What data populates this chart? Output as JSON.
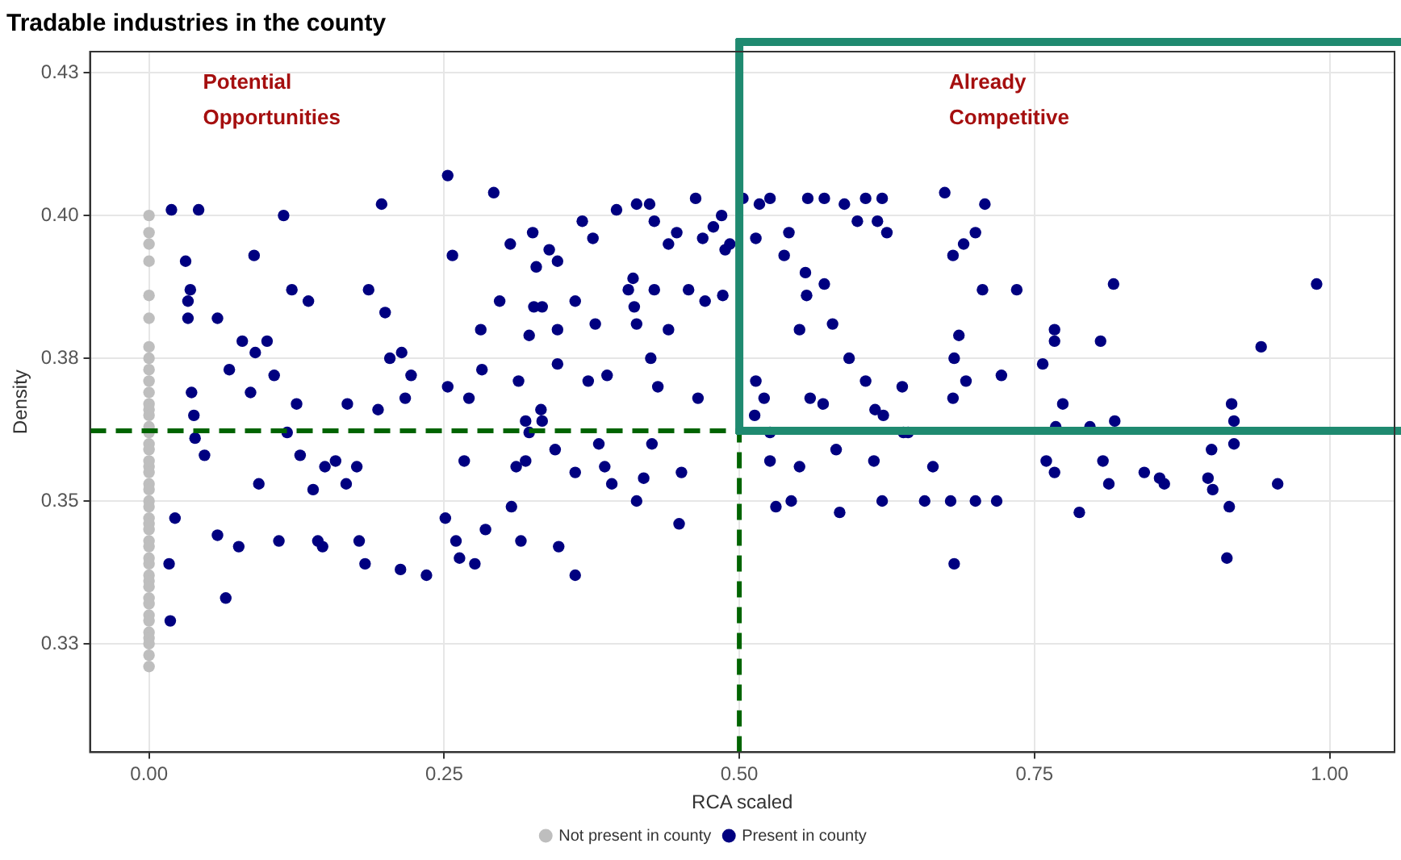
{
  "chart_data": {
    "type": "scatter",
    "title": "Tradable industries in the county",
    "xlabel": "RCA scaled",
    "ylabel": "Density",
    "xlim": [
      -0.05,
      1.055
    ],
    "ylim": [
      0.306,
      0.4287
    ],
    "xticks": [
      {
        "value": 0,
        "label": "0.00"
      },
      {
        "value": 0.25,
        "label": "0.25"
      },
      {
        "value": 0.5,
        "label": "0.50"
      },
      {
        "value": 0.75,
        "label": "0.75"
      },
      {
        "value": 1,
        "label": "1.00"
      }
    ],
    "yticks": [
      {
        "value": 0.325,
        "label": "0.33"
      },
      {
        "value": 0.35,
        "label": "0.35"
      },
      {
        "value": 0.375,
        "label": "0.38"
      },
      {
        "value": 0.4,
        "label": "0.40"
      },
      {
        "value": 0.425,
        "label": "0.43"
      }
    ],
    "grid": true,
    "legend": "bottom",
    "marker": "circle",
    "annotations": [
      "Potential Opportunities",
      "Already Competitive"
    ],
    "ref_lines": [
      {
        "axis": "y",
        "value": 0.3623,
        "color": "#006400",
        "line_style": "dashed"
      },
      {
        "axis": "x",
        "value": 0.5,
        "color": "#006400",
        "line_style": "dashed"
      },
      {
        "axis": "y",
        "value": 0.3623,
        "color": "#1f8a70",
        "line_style": "solid"
      },
      {
        "axis": "x",
        "value": 0.5,
        "color": "#1f8a70",
        "line_style": "solid"
      }
    ],
    "series": [
      {
        "name": "Not present in county",
        "color": "#bebebe",
        "x": [
          0,
          0,
          0,
          0,
          0,
          0,
          0,
          0,
          0,
          0,
          0,
          0,
          0,
          0,
          0,
          0,
          0,
          0,
          0,
          0,
          0,
          0,
          0,
          0,
          0,
          0,
          0,
          0,
          0,
          0,
          0,
          0,
          0,
          0,
          0,
          0,
          0,
          0,
          0,
          0,
          0,
          0,
          0,
          0
        ],
        "values": [
          0.4,
          0.397,
          0.395,
          0.392,
          0.386,
          0.382,
          0.377,
          0.375,
          0.373,
          0.371,
          0.369,
          0.367,
          0.366,
          0.365,
          0.363,
          0.362,
          0.36,
          0.359,
          0.357,
          0.356,
          0.355,
          0.353,
          0.352,
          0.35,
          0.349,
          0.347,
          0.346,
          0.345,
          0.343,
          0.342,
          0.34,
          0.339,
          0.337,
          0.336,
          0.335,
          0.333,
          0.332,
          0.33,
          0.329,
          0.327,
          0.326,
          0.325,
          0.323,
          0.321
        ]
      },
      {
        "name": "Present in county",
        "color": "#000080",
        "x": [
          0.019,
          0.042,
          0.018,
          0.017,
          0.022,
          0.031,
          0.035,
          0.033,
          0.033,
          0.036,
          0.038,
          0.039,
          0.047,
          0.058,
          0.058,
          0.065,
          0.068,
          0.076,
          0.079,
          0.086,
          0.089,
          0.09,
          0.093,
          0.1,
          0.106,
          0.11,
          0.114,
          0.117,
          0.121,
          0.125,
          0.128,
          0.135,
          0.139,
          0.143,
          0.149,
          0.158,
          0.167,
          0.178,
          0.183,
          0.186,
          0.197,
          0.2,
          0.204,
          0.214,
          0.217,
          0.222,
          0.194,
          0.176,
          0.168,
          0.147,
          0.253,
          0.292,
          0.306,
          0.325,
          0.328,
          0.339,
          0.346,
          0.367,
          0.376,
          0.396,
          0.413,
          0.424,
          0.428,
          0.44,
          0.447,
          0.463,
          0.469,
          0.478,
          0.485,
          0.488,
          0.492,
          0.257,
          0.281,
          0.297,
          0.326,
          0.322,
          0.333,
          0.346,
          0.361,
          0.378,
          0.406,
          0.413,
          0.411,
          0.41,
          0.428,
          0.44,
          0.457,
          0.471,
          0.486,
          0.253,
          0.271,
          0.282,
          0.313,
          0.319,
          0.332,
          0.346,
          0.372,
          0.388,
          0.425,
          0.431,
          0.465,
          0.311,
          0.319,
          0.322,
          0.333,
          0.344,
          0.361,
          0.381,
          0.386,
          0.392,
          0.419,
          0.426,
          0.451,
          0.267,
          0.251,
          0.263,
          0.276,
          0.285,
          0.307,
          0.315,
          0.347,
          0.361,
          0.413,
          0.449,
          0.213,
          0.235,
          0.26,
          0.503,
          0.517,
          0.514,
          0.526,
          0.542,
          0.558,
          0.572,
          0.589,
          0.607,
          0.621,
          0.617,
          0.6,
          0.538,
          0.556,
          0.557,
          0.572,
          0.579,
          0.593,
          0.513,
          0.526,
          0.551,
          0.571,
          0.56,
          0.607,
          0.615,
          0.639,
          0.622,
          0.638,
          0.625,
          0.674,
          0.69,
          0.7,
          0.708,
          0.681,
          0.706,
          0.686,
          0.682,
          0.681,
          0.692,
          0.735,
          0.722,
          0.757,
          0.768,
          0.774,
          0.806,
          0.818,
          0.817,
          0.767,
          0.767,
          0.797,
          0.76,
          0.767,
          0.808,
          0.813,
          0.843,
          0.856,
          0.86,
          0.9,
          0.897,
          0.917,
          0.919,
          0.956,
          0.915,
          0.919,
          0.942,
          0.989,
          0.913,
          0.901,
          0.682,
          0.718,
          0.788,
          0.7,
          0.679,
          0.657,
          0.621,
          0.585,
          0.544,
          0.531,
          0.526,
          0.551,
          0.614,
          0.664,
          0.643,
          0.582,
          0.514,
          0.521
        ],
        "values": [
          0.401,
          0.401,
          0.329,
          0.339,
          0.347,
          0.392,
          0.387,
          0.385,
          0.382,
          0.369,
          0.365,
          0.361,
          0.358,
          0.382,
          0.344,
          0.333,
          0.373,
          0.342,
          0.378,
          0.369,
          0.393,
          0.376,
          0.353,
          0.378,
          0.372,
          0.343,
          0.4,
          0.362,
          0.387,
          0.367,
          0.358,
          0.385,
          0.352,
          0.343,
          0.356,
          0.357,
          0.353,
          0.343,
          0.339,
          0.387,
          0.402,
          0.383,
          0.375,
          0.376,
          0.368,
          0.372,
          0.366,
          0.356,
          0.367,
          0.342,
          0.407,
          0.404,
          0.395,
          0.397,
          0.391,
          0.394,
          0.392,
          0.399,
          0.396,
          0.401,
          0.402,
          0.402,
          0.399,
          0.395,
          0.397,
          0.403,
          0.396,
          0.398,
          0.4,
          0.394,
          0.395,
          0.393,
          0.38,
          0.385,
          0.384,
          0.379,
          0.384,
          0.38,
          0.385,
          0.381,
          0.387,
          0.381,
          0.384,
          0.389,
          0.387,
          0.38,
          0.387,
          0.385,
          0.386,
          0.37,
          0.368,
          0.373,
          0.371,
          0.364,
          0.366,
          0.374,
          0.371,
          0.372,
          0.375,
          0.37,
          0.368,
          0.356,
          0.357,
          0.362,
          0.364,
          0.359,
          0.355,
          0.36,
          0.356,
          0.353,
          0.354,
          0.36,
          0.355,
          0.357,
          0.347,
          0.34,
          0.339,
          0.345,
          0.349,
          0.343,
          0.342,
          0.337,
          0.35,
          0.346,
          0.338,
          0.337,
          0.343,
          0.403,
          0.402,
          0.396,
          0.403,
          0.397,
          0.403,
          0.403,
          0.402,
          0.403,
          0.403,
          0.399,
          0.399,
          0.393,
          0.39,
          0.386,
          0.388,
          0.381,
          0.375,
          0.365,
          0.362,
          0.38,
          0.367,
          0.368,
          0.371,
          0.366,
          0.362,
          0.365,
          0.37,
          0.397,
          0.404,
          0.395,
          0.397,
          0.402,
          0.393,
          0.387,
          0.379,
          0.375,
          0.368,
          0.371,
          0.387,
          0.372,
          0.374,
          0.363,
          0.367,
          0.378,
          0.364,
          0.388,
          0.38,
          0.378,
          0.363,
          0.357,
          0.355,
          0.357,
          0.353,
          0.355,
          0.354,
          0.353,
          0.359,
          0.354,
          0.367,
          0.364,
          0.353,
          0.349,
          0.36,
          0.377,
          0.388,
          0.34,
          0.352,
          0.339,
          0.35,
          0.348,
          0.35,
          0.35,
          0.35,
          0.35,
          0.348,
          0.35,
          0.349,
          0.357,
          0.356,
          0.357,
          0.356,
          0.362,
          0.359,
          0.371,
          0.368
        ]
      }
    ]
  }
}
